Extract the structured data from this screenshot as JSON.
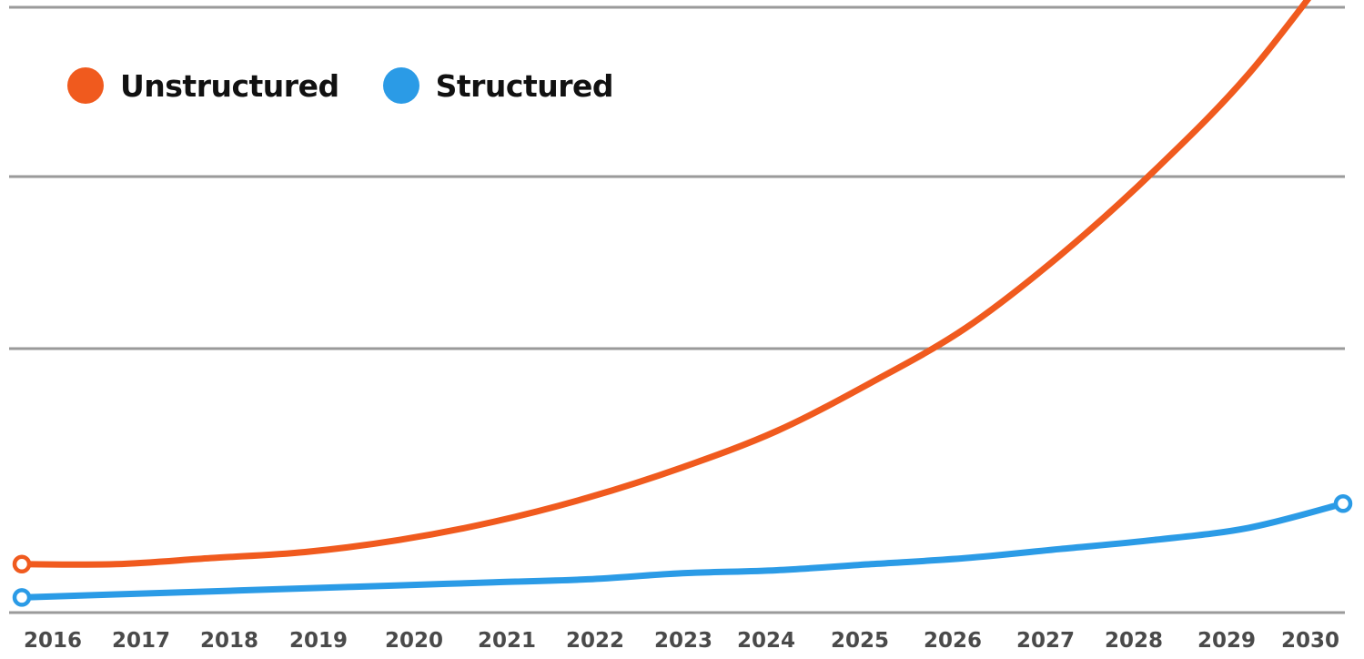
{
  "chart_data": {
    "type": "line",
    "title": "",
    "xlabel": "",
    "ylabel": "",
    "x": [
      "2016",
      "2017",
      "2018",
      "2019",
      "2020",
      "2021",
      "2022",
      "2023",
      "2024",
      "2025",
      "2026",
      "2027",
      "2028",
      "2029",
      "2030"
    ],
    "ylim": [
      0,
      100
    ],
    "grid": true,
    "y_tick_labels_shown": false,
    "legend_placement": "top-left",
    "series": [
      {
        "name": "Unstructured",
        "color": "#f05a1e",
        "values": [
          8,
          8,
          9,
          10,
          12,
          15,
          19,
          24,
          30,
          38,
          47,
          59,
          73,
          89,
          109
        ]
      },
      {
        "name": "Structured",
        "color": "#2b9be6",
        "values": [
          2.5,
          3,
          3.5,
          4,
          4.5,
          5,
          5.5,
          6.5,
          7,
          8,
          9,
          10.5,
          12,
          14,
          18
        ]
      }
    ],
    "markers": "hollow circles at first and last point"
  },
  "colors": {
    "gridline": "#9a9a9a",
    "tick_text": "#4a4a4a",
    "legend_text": "#111111"
  }
}
